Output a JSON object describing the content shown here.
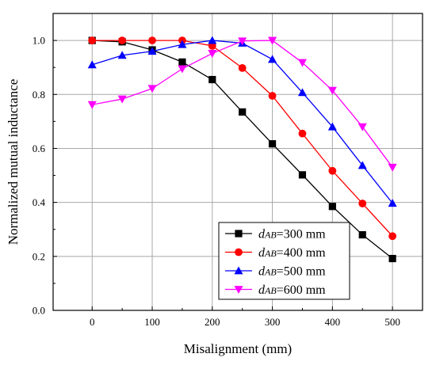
{
  "chart_data": {
    "type": "line",
    "xlabel": "Misalignment (mm)",
    "ylabel": "Normalized mutual inductance",
    "xlim": [
      -65,
      550
    ],
    "ylim": [
      0,
      1.1
    ],
    "x_ticks": [
      "0",
      "100",
      "200",
      "300",
      "400",
      "500"
    ],
    "y_ticks": [
      "0.0",
      "0.2",
      "0.4",
      "0.6",
      "0.8",
      "1.0"
    ],
    "grid": true,
    "legend_position": "bottom-right",
    "x": [
      0,
      50,
      100,
      150,
      200,
      250,
      300,
      350,
      400,
      450,
      500
    ],
    "series": [
      {
        "name_var": "d",
        "name_sub": "AB",
        "name_rest": "=300 mm",
        "color": "#000000",
        "marker": "square",
        "values": [
          1.0,
          0.995,
          0.965,
          0.92,
          0.855,
          0.735,
          0.617,
          0.502,
          0.385,
          0.28,
          0.192
        ]
      },
      {
        "name_var": "d",
        "name_sub": "AB",
        "name_rest": "=400 mm",
        "color": "#ff0000",
        "marker": "circle",
        "values": [
          1.0,
          1.0,
          1.0,
          1.0,
          0.98,
          0.898,
          0.795,
          0.655,
          0.517,
          0.396,
          0.275
        ]
      },
      {
        "name_var": "d",
        "name_sub": "AB",
        "name_rest": "=500 mm",
        "color": "#0000ff",
        "marker": "triangle-up",
        "values": [
          0.91,
          0.945,
          0.96,
          0.985,
          1.0,
          0.99,
          0.93,
          0.807,
          0.68,
          0.537,
          0.397
        ]
      },
      {
        "name_var": "d",
        "name_sub": "AB",
        "name_rest": "=600 mm",
        "color": "#ff00ff",
        "marker": "triangle-down",
        "values": [
          0.762,
          0.783,
          0.822,
          0.895,
          0.952,
          0.998,
          1.0,
          0.918,
          0.815,
          0.68,
          0.53
        ]
      }
    ]
  }
}
